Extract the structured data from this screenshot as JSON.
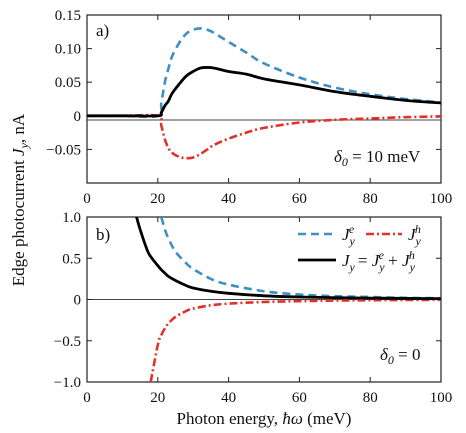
{
  "figure": {
    "ylabel_main": "Edge photocurrent ",
    "ylabel_var": "J",
    "ylabel_sub": "y",
    "ylabel_unit": ", nA",
    "xlabel_main": "Photon energy, ",
    "xlabel_var": "ħω",
    "xlabel_unit": " (meV)"
  },
  "chart_data": [
    {
      "type": "line",
      "panel_label": "a)",
      "annotation_var": "δ",
      "annotation_sub": "0",
      "annotation_val": " = 10 meV",
      "xlim": [
        0,
        100
      ],
      "ylim": [
        -0.1,
        0.15
      ],
      "xticks": [
        "0",
        "20",
        "40",
        "60",
        "80",
        "100"
      ],
      "yticks": [
        "0.15",
        "0.10",
        "0.05",
        "0",
        "-0.05"
      ],
      "ytick_values": [
        0.15,
        0.1,
        0.05,
        0,
        -0.05
      ],
      "x": [
        0,
        10,
        20,
        21,
        22,
        23,
        24,
        26,
        28,
        30,
        32,
        34,
        36,
        40,
        45,
        50,
        60,
        70,
        80,
        90,
        100
      ],
      "series": [
        {
          "key": "Je",
          "color": "#3d8fc4",
          "dash": "8,5",
          "values": [
            0,
            0,
            0,
            0.02,
            0.05,
            0.07,
            0.088,
            0.108,
            0.122,
            0.128,
            0.13,
            0.128,
            0.123,
            0.11,
            0.094,
            0.078,
            0.057,
            0.042,
            0.032,
            0.025,
            0.02
          ]
        },
        {
          "key": "Jh",
          "color": "#e0312b",
          "dash": "8,3,2,3",
          "values": [
            0,
            0,
            0,
            -0.015,
            -0.035,
            -0.048,
            -0.055,
            -0.061,
            -0.063,
            -0.062,
            -0.057,
            -0.05,
            -0.043,
            -0.034,
            -0.025,
            -0.018,
            -0.01,
            -0.006,
            -0.004,
            -0.002,
            -0.001
          ]
        },
        {
          "key": "Jy",
          "color": "#000000",
          "dash": "",
          "values": [
            0,
            0,
            0,
            0.005,
            0.015,
            0.022,
            0.033,
            0.047,
            0.059,
            0.066,
            0.071,
            0.072,
            0.071,
            0.066,
            0.062,
            0.055,
            0.046,
            0.036,
            0.029,
            0.023,
            0.019
          ]
        }
      ]
    },
    {
      "type": "line",
      "panel_label": "b)",
      "annotation_var": "δ",
      "annotation_sub": "0",
      "annotation_val": " = 0",
      "xlim": [
        0,
        100
      ],
      "ylim": [
        -1.0,
        1.0
      ],
      "xticks": [
        "0",
        "20",
        "40",
        "60",
        "80",
        "100"
      ],
      "yticks": [
        "1.0",
        "0.5",
        "0",
        "-0.5",
        "-1.0"
      ],
      "ytick_values": [
        1.0,
        0.5,
        0,
        -0.5,
        -1.0
      ],
      "legend": {
        "Je_var": "J",
        "Je_sub": "y",
        "Je_sup": "e",
        "Jh_var": "J",
        "Jh_sub": "y",
        "Jh_sup": "h",
        "Jy_text": "= ",
        "Jy_var": "J",
        "Jy_sub": "y",
        "Jy_plus": " + "
      },
      "x": [
        14,
        15,
        17,
        18,
        20,
        21,
        22,
        23,
        25,
        28,
        30,
        35,
        40,
        50,
        60,
        70,
        80,
        90,
        100
      ],
      "series": [
        {
          "key": "Je",
          "color": "#3d8fc4",
          "dash": "8,5",
          "values": [
            null,
            null,
            null,
            null,
            null,
            1.0,
            0.85,
            0.74,
            0.58,
            0.44,
            0.37,
            0.25,
            0.18,
            0.1,
            0.06,
            0.04,
            0.03,
            0.02,
            0.015
          ]
        },
        {
          "key": "Jh",
          "color": "#e0312b",
          "dash": "8,3,2,3",
          "values": [
            null,
            null,
            null,
            -1.0,
            -0.55,
            -0.43,
            -0.35,
            -0.29,
            -0.21,
            -0.14,
            -0.11,
            -0.07,
            -0.05,
            -0.03,
            -0.02,
            -0.013,
            -0.009,
            -0.006,
            -0.004
          ]
        },
        {
          "key": "Jy",
          "color": "#000000",
          "dash": "",
          "values": [
            1.0,
            0.85,
            0.6,
            0.52,
            0.41,
            0.36,
            0.32,
            0.28,
            0.23,
            0.17,
            0.14,
            0.1,
            0.075,
            0.045,
            0.03,
            0.022,
            0.017,
            0.013,
            0.011
          ]
        }
      ]
    }
  ]
}
